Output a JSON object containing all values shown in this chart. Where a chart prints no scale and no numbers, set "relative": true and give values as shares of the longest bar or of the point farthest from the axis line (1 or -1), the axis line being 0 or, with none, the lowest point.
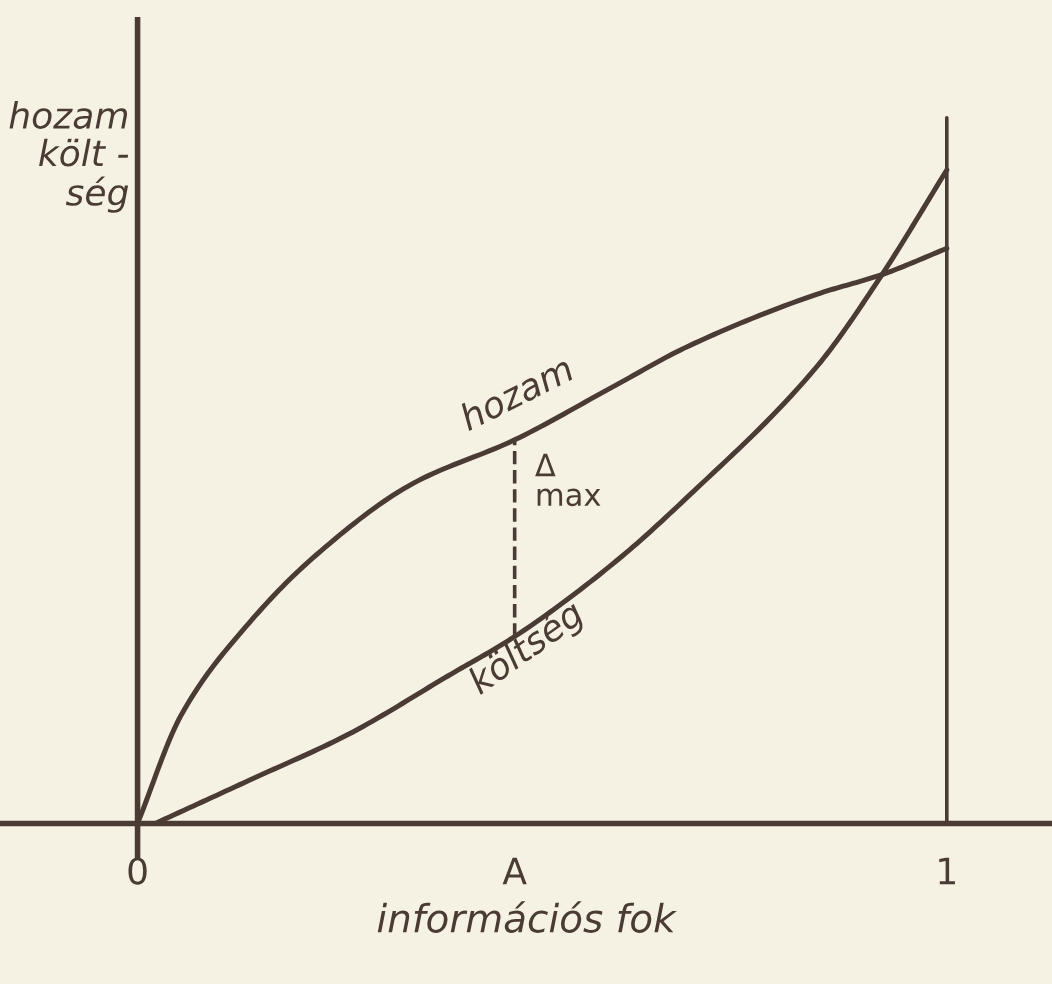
{
  "chart_data": {
    "type": "line",
    "relative": true,
    "xlabel": "információs fok",
    "ylabel": "hozam\nkölt -\nség",
    "xlim": [
      -0.17,
      1.13
    ],
    "xticks": [
      0,
      {
        "value": 0.466,
        "label": "A"
      },
      1
    ],
    "series": [
      {
        "name": "hozam",
        "color": "#4a3c34",
        "x": [
          0,
          0.054,
          0.138,
          0.22,
          0.34,
          0.466,
          0.59,
          0.68,
          0.84,
          0.92,
          1
        ],
        "values": [
          0,
          0.166,
          0.307,
          0.41,
          0.52,
          0.587,
          0.67,
          0.73,
          0.81,
          0.84,
          0.88
        ]
      },
      {
        "name": "költség",
        "color": "#4a3c34",
        "x": [
          0.022,
          0.138,
          0.26,
          0.384,
          0.466,
          0.59,
          0.68,
          0.84,
          0.92,
          1
        ],
        "values": [
          0,
          0.066,
          0.136,
          0.226,
          0.286,
          0.4,
          0.5,
          0.7,
          0.84,
          1
        ]
      }
    ],
    "ref_lines": [
      {
        "axis": "x",
        "value": 0.466,
        "label": "Δ\nmax",
        "line_style": "dashed"
      },
      {
        "axis": "x",
        "value": 1,
        "line_style": "solid"
      }
    ],
    "grid": false,
    "legend": false,
    "marker": "none",
    "line_style": "solid"
  }
}
